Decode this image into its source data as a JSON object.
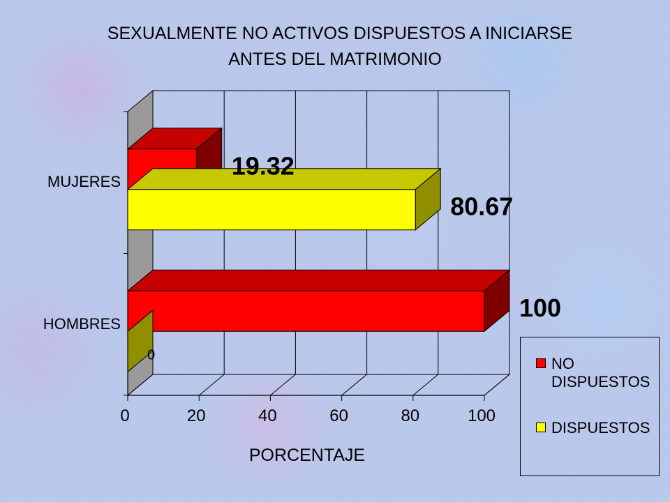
{
  "chart_data": {
    "type": "bar",
    "orientation": "horizontal",
    "title_line1": "SEXUALMENTE NO ACTIVOS DISPUESTOS A INICIARSE",
    "title_line2": "ANTES DEL MATRIMONIO",
    "xlabel": "PORCENTAJE",
    "ylabel": "",
    "categories": [
      "MUJERES",
      "HOMBRES"
    ],
    "xlim": [
      0,
      100
    ],
    "xticks": [
      0,
      20,
      40,
      60,
      80,
      100
    ],
    "xtick_labels": [
      "0",
      "20",
      "40",
      "60",
      "80",
      "100"
    ],
    "grid": true,
    "legend_position": "bottom-right",
    "series": [
      {
        "name": "NO DISPUESTOS",
        "color": "#ff0000",
        "values": [
          19.32,
          100
        ],
        "labels": [
          "19.32",
          "100"
        ]
      },
      {
        "name": "DISPUESTOS",
        "color": "#ffff00",
        "values": [
          80.67,
          0
        ],
        "labels": [
          "80.67",
          "0"
        ]
      }
    ]
  }
}
